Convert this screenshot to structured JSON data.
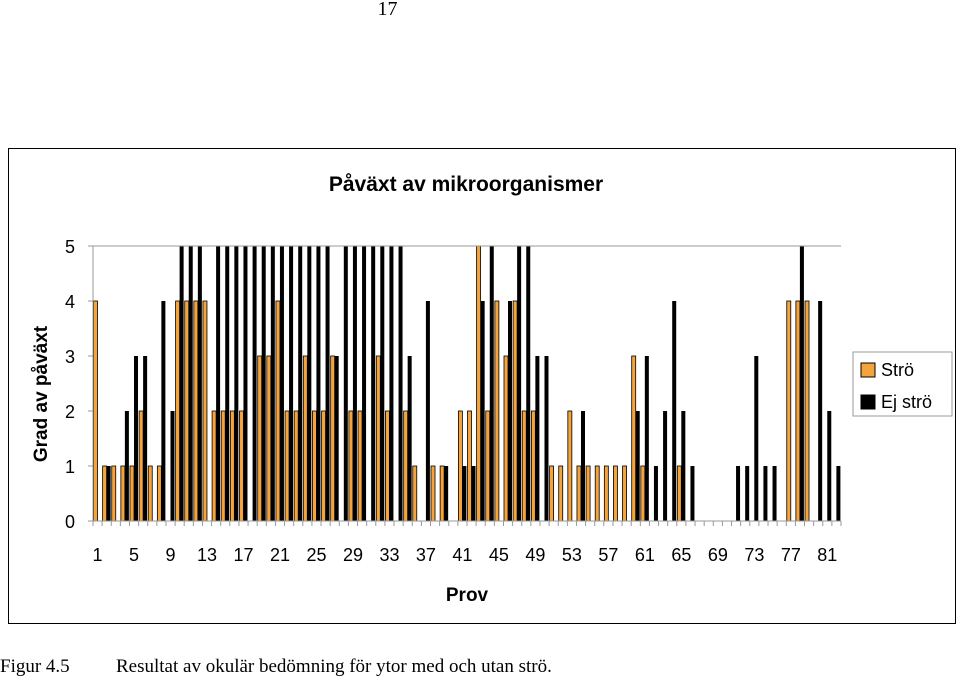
{
  "page_number": "17",
  "caption": {
    "label": "Figur 4.5",
    "text": "Resultat av okulär bedömning för ytor med och utan strö."
  },
  "colors": {
    "stro": "#f5a33c",
    "ej_stro": "#000000",
    "axis": "#999999",
    "text": "#000000"
  },
  "chart_data": {
    "type": "bar",
    "title": "Påväxt av mikroorganismer",
    "xlabel": "Prov",
    "ylabel": "Grad av påväxt",
    "ylim": [
      0,
      5
    ],
    "yticks": [
      0,
      1,
      2,
      3,
      4,
      5
    ],
    "grid": false,
    "legend_position": "right",
    "x_tick_labels": [
      "1",
      "5",
      "9",
      "13",
      "17",
      "21",
      "25",
      "29",
      "33",
      "37",
      "41",
      "45",
      "49",
      "53",
      "57",
      "61",
      "65",
      "69",
      "73",
      "77",
      "81"
    ],
    "categories": [
      1,
      2,
      3,
      4,
      5,
      6,
      7,
      8,
      9,
      10,
      11,
      12,
      13,
      14,
      15,
      16,
      17,
      18,
      19,
      20,
      21,
      22,
      23,
      24,
      25,
      26,
      27,
      28,
      29,
      30,
      31,
      32,
      33,
      34,
      35,
      36,
      37,
      38,
      39,
      40,
      41,
      42,
      43,
      44,
      45,
      46,
      47,
      48,
      49,
      50,
      51,
      52,
      53,
      54,
      55,
      56,
      57,
      58,
      59,
      60,
      61,
      62,
      63,
      64,
      65,
      66,
      67,
      68,
      69,
      70,
      71,
      72,
      73,
      74,
      75,
      76,
      77,
      78,
      79,
      80,
      81,
      82
    ],
    "series": [
      {
        "name": "Strö",
        "color": "#f5a33c",
        "values": [
          4,
          1,
          1,
          1,
          1,
          2,
          1,
          1,
          0,
          4,
          4,
          4,
          4,
          2,
          2,
          2,
          2,
          0,
          3,
          3,
          4,
          2,
          2,
          3,
          2,
          2,
          3,
          0,
          2,
          2,
          0,
          3,
          2,
          0,
          2,
          1,
          0,
          1,
          1,
          0,
          2,
          2,
          5,
          2,
          4,
          3,
          4,
          2,
          2,
          0,
          1,
          1,
          2,
          1,
          1,
          1,
          1,
          1,
          1,
          3,
          1,
          0,
          0,
          0,
          1,
          0,
          0,
          0,
          0,
          0,
          0,
          0,
          0,
          0,
          0,
          0,
          4,
          4,
          4,
          0,
          0,
          0
        ]
      },
      {
        "name": "Ej strö",
        "color": "#000000",
        "values": [
          0,
          1,
          0,
          2,
          3,
          3,
          0,
          4,
          2,
          5,
          5,
          5,
          0,
          5,
          5,
          5,
          5,
          5,
          5,
          5,
          5,
          5,
          5,
          5,
          5,
          5,
          3,
          5,
          5,
          5,
          5,
          5,
          5,
          5,
          3,
          0,
          4,
          0,
          1,
          0,
          1,
          1,
          4,
          5,
          0,
          4,
          5,
          5,
          3,
          3,
          0,
          0,
          0,
          2,
          0,
          0,
          0,
          0,
          0,
          2,
          3,
          1,
          2,
          4,
          2,
          1,
          0,
          0,
          0,
          0,
          1,
          1,
          3,
          1,
          1,
          0,
          0,
          5,
          0,
          4,
          2,
          1
        ]
      }
    ]
  },
  "legend": [
    {
      "label": "Strö",
      "color": "#f5a33c"
    },
    {
      "label": "Ej strö",
      "color": "#000000"
    }
  ]
}
